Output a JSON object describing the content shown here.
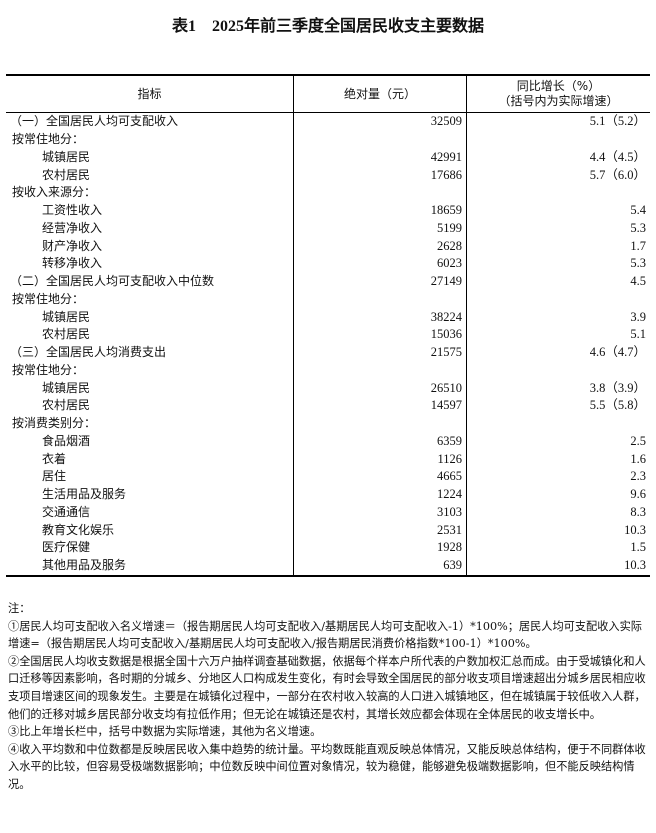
{
  "title": "表1　2025年前三季度全国居民收支主要数据",
  "headers": {
    "indicator": "指标",
    "absolute": "绝对量（元）",
    "growth_line1": "同比增长（%）",
    "growth_line2": "（括号内为实际增速）"
  },
  "rows": [
    {
      "label": "（一）全国居民人均可支配收入",
      "level": 0,
      "value": "32509",
      "growth": "5.1（5.2）"
    },
    {
      "label": "按常住地分：",
      "level": 1,
      "value": "",
      "growth": ""
    },
    {
      "label": "城镇居民",
      "level": 2,
      "value": "42991",
      "growth": "4.4（4.5）"
    },
    {
      "label": "农村居民",
      "level": 2,
      "value": "17686",
      "growth": "5.7（6.0）"
    },
    {
      "label": "按收入来源分：",
      "level": 1,
      "value": "",
      "growth": ""
    },
    {
      "label": "工资性收入",
      "level": 2,
      "value": "18659",
      "growth": "5.4"
    },
    {
      "label": "经营净收入",
      "level": 2,
      "value": "5199",
      "growth": "5.3"
    },
    {
      "label": "财产净收入",
      "level": 2,
      "value": "2628",
      "growth": "1.7"
    },
    {
      "label": "转移净收入",
      "level": 2,
      "value": "6023",
      "growth": "5.3"
    },
    {
      "label": "（二）全国居民人均可支配收入中位数",
      "level": 0,
      "value": "27149",
      "growth": "4.5"
    },
    {
      "label": "按常住地分：",
      "level": 1,
      "value": "",
      "growth": ""
    },
    {
      "label": "城镇居民",
      "level": 2,
      "value": "38224",
      "growth": "3.9"
    },
    {
      "label": "农村居民",
      "level": 2,
      "value": "15036",
      "growth": "5.1"
    },
    {
      "label": "（三）全国居民人均消费支出",
      "level": 0,
      "value": "21575",
      "growth": "4.6（4.7）"
    },
    {
      "label": "按常住地分：",
      "level": 1,
      "value": "",
      "growth": ""
    },
    {
      "label": "城镇居民",
      "level": 2,
      "value": "26510",
      "growth": "3.8（3.9）"
    },
    {
      "label": "农村居民",
      "level": 2,
      "value": "14597",
      "growth": "5.5（5.8）"
    },
    {
      "label": "按消费类别分：",
      "level": 1,
      "value": "",
      "growth": ""
    },
    {
      "label": "食品烟酒",
      "level": 2,
      "value": "6359",
      "growth": "2.5"
    },
    {
      "label": "衣着",
      "level": 2,
      "value": "1126",
      "growth": "1.6"
    },
    {
      "label": "居住",
      "level": 2,
      "value": "4665",
      "growth": "2.3"
    },
    {
      "label": "生活用品及服务",
      "level": 2,
      "value": "1224",
      "growth": "9.6"
    },
    {
      "label": "交通通信",
      "level": 2,
      "value": "3103",
      "growth": "8.3"
    },
    {
      "label": "教育文化娱乐",
      "level": 2,
      "value": "2531",
      "growth": "10.3"
    },
    {
      "label": "医疗保健",
      "level": 2,
      "value": "1928",
      "growth": "1.5"
    },
    {
      "label": "其他用品及服务",
      "level": 2,
      "value": "639",
      "growth": "10.3"
    }
  ],
  "notes": {
    "heading": "注：",
    "items": [
      "①居民人均可支配收入名义增速＝（报告期居民人均可支配收入/基期居民人均可支配收入-1）*100%；居民人均可支配收入实际增速=（报告期居民人均可支配收入/基期居民人均可支配收入/报告期居民消费价格指数*100-1）*100%。",
      "②全国居民人均收支数据是根据全国十六万户抽样调查基础数据，依据每个样本户所代表的户数加权汇总而成。由于受城镇化和人口迁移等因素影响，各时期的分城乡、分地区人口构成发生变化，有时会导致全国居民的部分收支项目增速超出分城乡居民相应收支项目增速区间的现象发生。主要是在城镇化过程中，一部分在农村收入较高的人口进入城镇地区，但在城镇属于较低收入人群，他们的迁移对城乡居民部分收支均有拉低作用；但无论在城镇还是农村，其增长效应都会体现在全体居民的收支增长中。",
      "③比上年增长栏中，括号中数据为实际增速，其他为名义增速。",
      "④收入平均数和中位数都是反映居民收入集中趋势的统计量。平均数既能直观反映总体情况，又能反映总体结构，便于不同群体收入水平的比较，但容易受极端数据影响；中位数反映中间位置对象情况，较为稳健，能够避免极端数据影响，但不能反映结构情况。"
    ]
  }
}
